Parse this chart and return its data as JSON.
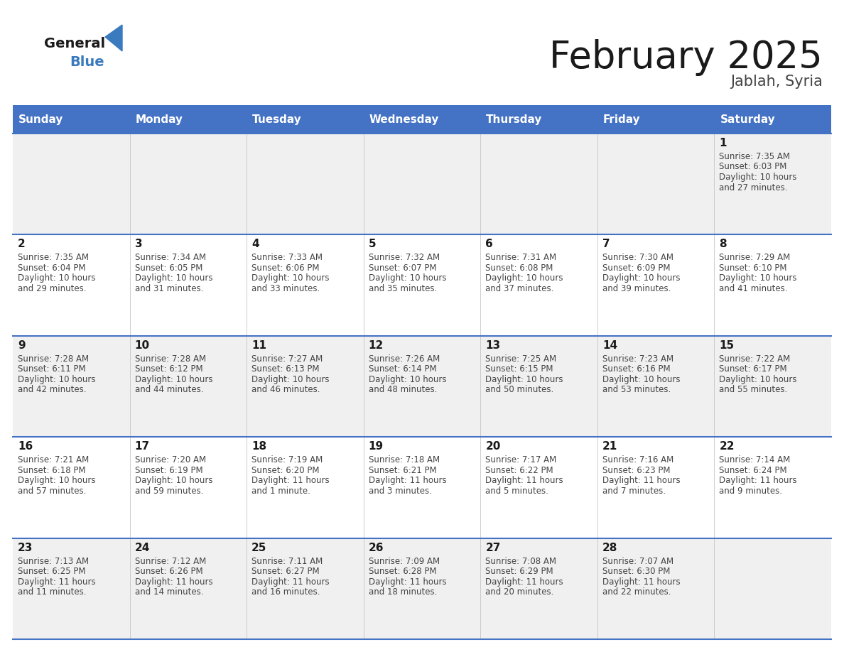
{
  "title": "February 2025",
  "subtitle": "Jablah, Syria",
  "header_bg_color": "#4472C4",
  "header_text_color": "#FFFFFF",
  "header_days": [
    "Sunday",
    "Monday",
    "Tuesday",
    "Wednesday",
    "Thursday",
    "Friday",
    "Saturday"
  ],
  "row_bg_even": "#F0F0F0",
  "row_bg_odd": "#FFFFFF",
  "cell_border_color": "#4472C4",
  "title_color": "#1a1a1a",
  "subtitle_color": "#444444",
  "day_num_color": "#1a1a1a",
  "info_color": "#444444",
  "calendar": [
    [
      null,
      null,
      null,
      null,
      null,
      null,
      {
        "day": 1,
        "sunrise": "7:35 AM",
        "sunset": "6:03 PM",
        "daylight_h": "10 hours",
        "daylight_m": "and 27 minutes."
      }
    ],
    [
      {
        "day": 2,
        "sunrise": "7:35 AM",
        "sunset": "6:04 PM",
        "daylight_h": "10 hours",
        "daylight_m": "and 29 minutes."
      },
      {
        "day": 3,
        "sunrise": "7:34 AM",
        "sunset": "6:05 PM",
        "daylight_h": "10 hours",
        "daylight_m": "and 31 minutes."
      },
      {
        "day": 4,
        "sunrise": "7:33 AM",
        "sunset": "6:06 PM",
        "daylight_h": "10 hours",
        "daylight_m": "and 33 minutes."
      },
      {
        "day": 5,
        "sunrise": "7:32 AM",
        "sunset": "6:07 PM",
        "daylight_h": "10 hours",
        "daylight_m": "and 35 minutes."
      },
      {
        "day": 6,
        "sunrise": "7:31 AM",
        "sunset": "6:08 PM",
        "daylight_h": "10 hours",
        "daylight_m": "and 37 minutes."
      },
      {
        "day": 7,
        "sunrise": "7:30 AM",
        "sunset": "6:09 PM",
        "daylight_h": "10 hours",
        "daylight_m": "and 39 minutes."
      },
      {
        "day": 8,
        "sunrise": "7:29 AM",
        "sunset": "6:10 PM",
        "daylight_h": "10 hours",
        "daylight_m": "and 41 minutes."
      }
    ],
    [
      {
        "day": 9,
        "sunrise": "7:28 AM",
        "sunset": "6:11 PM",
        "daylight_h": "10 hours",
        "daylight_m": "and 42 minutes."
      },
      {
        "day": 10,
        "sunrise": "7:28 AM",
        "sunset": "6:12 PM",
        "daylight_h": "10 hours",
        "daylight_m": "and 44 minutes."
      },
      {
        "day": 11,
        "sunrise": "7:27 AM",
        "sunset": "6:13 PM",
        "daylight_h": "10 hours",
        "daylight_m": "and 46 minutes."
      },
      {
        "day": 12,
        "sunrise": "7:26 AM",
        "sunset": "6:14 PM",
        "daylight_h": "10 hours",
        "daylight_m": "and 48 minutes."
      },
      {
        "day": 13,
        "sunrise": "7:25 AM",
        "sunset": "6:15 PM",
        "daylight_h": "10 hours",
        "daylight_m": "and 50 minutes."
      },
      {
        "day": 14,
        "sunrise": "7:23 AM",
        "sunset": "6:16 PM",
        "daylight_h": "10 hours",
        "daylight_m": "and 53 minutes."
      },
      {
        "day": 15,
        "sunrise": "7:22 AM",
        "sunset": "6:17 PM",
        "daylight_h": "10 hours",
        "daylight_m": "and 55 minutes."
      }
    ],
    [
      {
        "day": 16,
        "sunrise": "7:21 AM",
        "sunset": "6:18 PM",
        "daylight_h": "10 hours",
        "daylight_m": "and 57 minutes."
      },
      {
        "day": 17,
        "sunrise": "7:20 AM",
        "sunset": "6:19 PM",
        "daylight_h": "10 hours",
        "daylight_m": "and 59 minutes."
      },
      {
        "day": 18,
        "sunrise": "7:19 AM",
        "sunset": "6:20 PM",
        "daylight_h": "11 hours",
        "daylight_m": "and 1 minute."
      },
      {
        "day": 19,
        "sunrise": "7:18 AM",
        "sunset": "6:21 PM",
        "daylight_h": "11 hours",
        "daylight_m": "and 3 minutes."
      },
      {
        "day": 20,
        "sunrise": "7:17 AM",
        "sunset": "6:22 PM",
        "daylight_h": "11 hours",
        "daylight_m": "and 5 minutes."
      },
      {
        "day": 21,
        "sunrise": "7:16 AM",
        "sunset": "6:23 PM",
        "daylight_h": "11 hours",
        "daylight_m": "and 7 minutes."
      },
      {
        "day": 22,
        "sunrise": "7:14 AM",
        "sunset": "6:24 PM",
        "daylight_h": "11 hours",
        "daylight_m": "and 9 minutes."
      }
    ],
    [
      {
        "day": 23,
        "sunrise": "7:13 AM",
        "sunset": "6:25 PM",
        "daylight_h": "11 hours",
        "daylight_m": "and 11 minutes."
      },
      {
        "day": 24,
        "sunrise": "7:12 AM",
        "sunset": "6:26 PM",
        "daylight_h": "11 hours",
        "daylight_m": "and 14 minutes."
      },
      {
        "day": 25,
        "sunrise": "7:11 AM",
        "sunset": "6:27 PM",
        "daylight_h": "11 hours",
        "daylight_m": "and 16 minutes."
      },
      {
        "day": 26,
        "sunrise": "7:09 AM",
        "sunset": "6:28 PM",
        "daylight_h": "11 hours",
        "daylight_m": "and 18 minutes."
      },
      {
        "day": 27,
        "sunrise": "7:08 AM",
        "sunset": "6:29 PM",
        "daylight_h": "11 hours",
        "daylight_m": "and 20 minutes."
      },
      {
        "day": 28,
        "sunrise": "7:07 AM",
        "sunset": "6:30 PM",
        "daylight_h": "11 hours",
        "daylight_m": "and 22 minutes."
      },
      null
    ]
  ],
  "figsize": [
    11.88,
    9.18
  ],
  "dpi": 100
}
